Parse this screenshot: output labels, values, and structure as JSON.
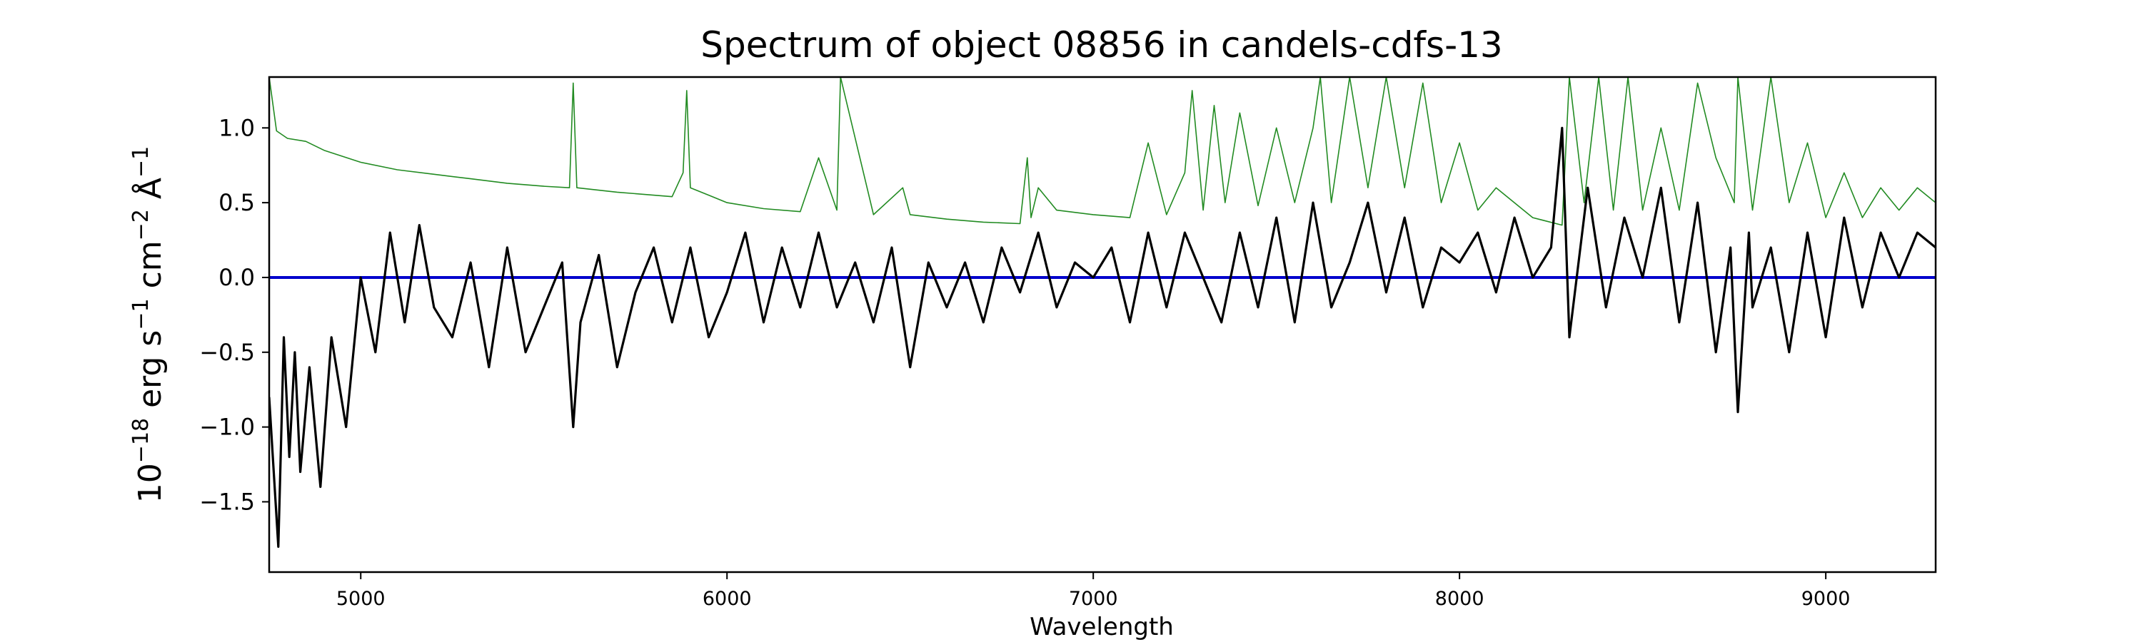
{
  "chart_data": {
    "type": "line",
    "title": "Spectrum of object 08856 in candels-cdfs-13",
    "xlabel": "Wavelength",
    "ylabel": {
      "base": "10",
      "exp": "−18",
      "unit1": " erg s",
      "exp1": "−1",
      "unit2": " cm",
      "exp2": "−2",
      "unit3": " Å",
      "exp3": "−1"
    },
    "xlim": [
      4750,
      9300
    ],
    "ylim": [
      -1.97,
      1.34
    ],
    "xticks": [
      5000,
      6000,
      7000,
      8000,
      9000
    ],
    "xtick_labels": [
      "5000",
      "6000",
      "7000",
      "8000",
      "9000"
    ],
    "yticks": [
      -1.5,
      -1.0,
      -0.5,
      0.0,
      0.5,
      1.0
    ],
    "ytick_labels": [
      "−1.5",
      "−1.0",
      "−0.5",
      "0.0",
      "0.5",
      "1.0"
    ],
    "grid": false,
    "legend": "none",
    "series": [
      {
        "role": "zero-level",
        "color": "#0000cc",
        "x": [
          4750,
          9300
        ],
        "y": [
          0.0,
          0.0
        ]
      },
      {
        "role": "flux",
        "color": "#000000",
        "x": [
          4750,
          4760,
          4775,
          4790,
          4805,
          4820,
          4835,
          4860,
          4890,
          4920,
          4960,
          5000,
          5040,
          5080,
          5120,
          5160,
          5200,
          5250,
          5300,
          5350,
          5400,
          5450,
          5500,
          5550,
          5580,
          5600,
          5650,
          5700,
          5750,
          5800,
          5850,
          5900,
          5950,
          6000,
          6050,
          6100,
          6150,
          6200,
          6250,
          6300,
          6350,
          6400,
          6450,
          6500,
          6550,
          6600,
          6650,
          6700,
          6750,
          6800,
          6850,
          6900,
          6950,
          7000,
          7050,
          7100,
          7150,
          7200,
          7250,
          7300,
          7350,
          7400,
          7450,
          7500,
          7550,
          7600,
          7650,
          7700,
          7750,
          7800,
          7850,
          7900,
          7950,
          8000,
          8050,
          8100,
          8150,
          8200,
          8250,
          8280,
          8300,
          8350,
          8400,
          8450,
          8500,
          8550,
          8600,
          8650,
          8700,
          8740,
          8760,
          8790,
          8800,
          8850,
          8900,
          8950,
          9000,
          9050,
          9100,
          9150,
          9200,
          9250,
          9300
        ],
        "y": [
          -0.8,
          -1.2,
          -1.8,
          -0.4,
          -1.2,
          -0.5,
          -1.3,
          -0.6,
          -1.4,
          -0.4,
          -1.0,
          0.0,
          -0.5,
          0.3,
          -0.3,
          0.35,
          -0.2,
          -0.4,
          0.1,
          -0.6,
          0.2,
          -0.5,
          -0.2,
          0.1,
          -1.0,
          -0.3,
          0.15,
          -0.6,
          -0.1,
          0.2,
          -0.3,
          0.2,
          -0.4,
          -0.1,
          0.3,
          -0.3,
          0.2,
          -0.2,
          0.3,
          -0.2,
          0.1,
          -0.3,
          0.2,
          -0.6,
          0.1,
          -0.2,
          0.1,
          -0.3,
          0.2,
          -0.1,
          0.3,
          -0.2,
          0.1,
          0.0,
          0.2,
          -0.3,
          0.3,
          -0.2,
          0.3,
          0.0,
          -0.3,
          0.3,
          -0.2,
          0.4,
          -0.3,
          0.5,
          -0.2,
          0.1,
          0.5,
          -0.1,
          0.4,
          -0.2,
          0.2,
          0.1,
          0.3,
          -0.1,
          0.4,
          0.0,
          0.2,
          1.0,
          -0.4,
          0.6,
          -0.2,
          0.4,
          0.0,
          0.6,
          -0.3,
          0.5,
          -0.5,
          0.2,
          -0.9,
          0.3,
          -0.2,
          0.2,
          -0.5,
          0.3,
          -0.4,
          0.4,
          -0.2,
          0.3,
          0.0,
          0.3,
          0.2
        ]
      },
      {
        "role": "model",
        "color": "#228b22",
        "x": [
          4750,
          4770,
          4800,
          4850,
          4900,
          5000,
          5100,
          5200,
          5300,
          5400,
          5500,
          5570,
          5580,
          5590,
          5700,
          5850,
          5880,
          5890,
          5900,
          5950,
          6000,
          6100,
          6200,
          6250,
          6300,
          6310,
          6400,
          6480,
          6500,
          6600,
          6700,
          6800,
          6820,
          6830,
          6850,
          6900,
          7000,
          7100,
          7150,
          7200,
          7250,
          7270,
          7300,
          7330,
          7360,
          7400,
          7450,
          7500,
          7550,
          7600,
          7620,
          7650,
          7700,
          7750,
          7800,
          7850,
          7900,
          7950,
          8000,
          8050,
          8100,
          8200,
          8280,
          8300,
          8340,
          8380,
          8420,
          8460,
          8500,
          8550,
          8600,
          8650,
          8700,
          8750,
          8760,
          8800,
          8850,
          8900,
          8950,
          9000,
          9050,
          9100,
          9150,
          9200,
          9250,
          9300
        ],
        "y": [
          1.34,
          0.98,
          0.93,
          0.91,
          0.85,
          0.77,
          0.72,
          0.69,
          0.66,
          0.63,
          0.61,
          0.6,
          1.3,
          0.6,
          0.57,
          0.54,
          0.7,
          1.25,
          0.6,
          0.55,
          0.5,
          0.46,
          0.44,
          0.8,
          0.45,
          1.34,
          0.42,
          0.6,
          0.42,
          0.39,
          0.37,
          0.36,
          0.8,
          0.4,
          0.6,
          0.45,
          0.42,
          0.4,
          0.9,
          0.42,
          0.7,
          1.25,
          0.45,
          1.15,
          0.5,
          1.1,
          0.48,
          1.0,
          0.5,
          1.0,
          1.34,
          0.5,
          1.34,
          0.6,
          1.34,
          0.6,
          1.3,
          0.5,
          0.9,
          0.45,
          0.6,
          0.4,
          0.35,
          1.34,
          0.5,
          1.34,
          0.45,
          1.34,
          0.45,
          1.0,
          0.45,
          1.3,
          0.8,
          0.5,
          1.34,
          0.45,
          1.34,
          0.5,
          0.9,
          0.4,
          0.7,
          0.4,
          0.6,
          0.45,
          0.6,
          0.5
        ]
      }
    ]
  }
}
